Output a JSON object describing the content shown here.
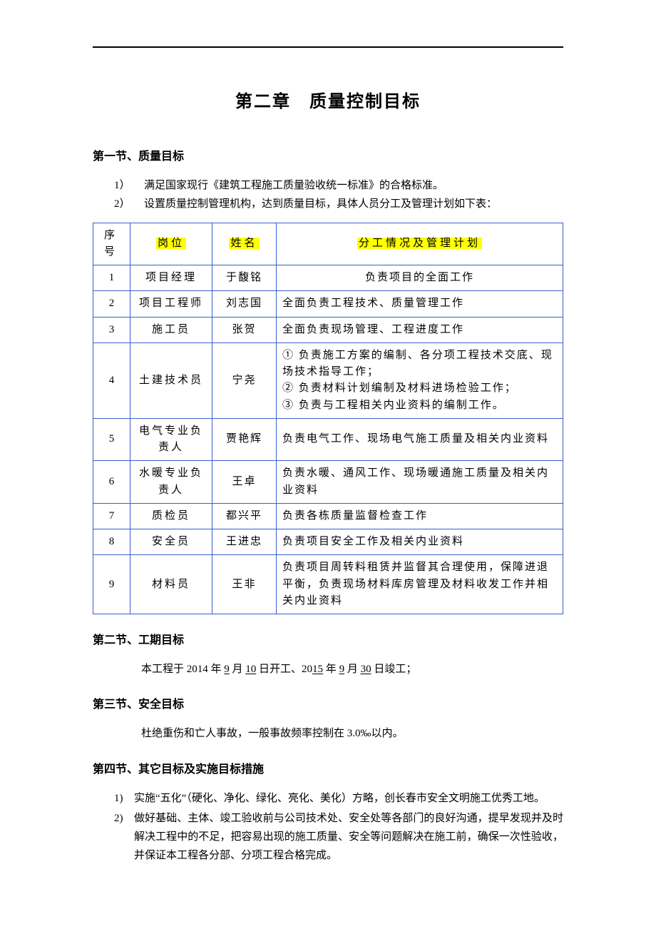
{
  "chapter_title": "第二章　质量控制目标",
  "section1": {
    "heading": "第一节、质量目标",
    "item1_num": "1）",
    "item1_text": "满足国家现行《建筑工程施工质量验收统一标准》的合格标准。",
    "item2_num": "2）",
    "item2_text": "设置质量控制管理机构，达到质量目标，具体人员分工及管理计划如下表："
  },
  "table": {
    "headers": {
      "seq": "序号",
      "pos": "岗位",
      "name": "姓名",
      "desc": "分工情况及管理计划"
    },
    "rows": [
      {
        "seq": "1",
        "pos": "项目经理",
        "name": "于馥铭",
        "desc": "负责项目的全面工作",
        "center": true
      },
      {
        "seq": "2",
        "pos": "项目工程师",
        "name": "刘志国",
        "desc": "全面负责工程技术、质量管理工作"
      },
      {
        "seq": "3",
        "pos": "施工员",
        "name": "张贺",
        "desc": "全面负责现场管理、工程进度工作"
      },
      {
        "seq": "4",
        "pos": "土建技术员",
        "name": "宁尧",
        "desc": "① 负责施工方案的编制、各分项工程技术交底、现场技术指导工作；\n② 负责材料计划编制及材料进场检验工作；\n③ 负责与工程相关内业资料的编制工作。"
      },
      {
        "seq": "5",
        "pos": "电气专业负责人",
        "name": "贾艳辉",
        "desc": "负责电气工作、现场电气施工质量及相关内业资料"
      },
      {
        "seq": "6",
        "pos": "水暖专业负责人",
        "name": "王卓",
        "desc": "负责水暖、通风工作、现场暖通施工质量及相关内业资料"
      },
      {
        "seq": "7",
        "pos": "质检员",
        "name": "都兴平",
        "desc": "负责各栋质量监督检查工作"
      },
      {
        "seq": "8",
        "pos": "安全员",
        "name": "王进忠",
        "desc": "负责项目安全工作及相关内业资料"
      },
      {
        "seq": "9",
        "pos": "材料员",
        "name": "王非",
        "desc": "负责项目周转料租赁并监督其合理使用，保障进退平衡，负责现场材料库房管理及材料收发工作并相关内业资料"
      }
    ]
  },
  "section2": {
    "heading": "第二节、工期目标",
    "para_parts": {
      "p1": "本工程于 2014 年 ",
      "u1": "9",
      "p2": " 月 ",
      "u2": "10",
      "p3": " 日开工、20",
      "u3": "15",
      "p4": " 年 ",
      "u4": "9",
      "p5": " 月 ",
      "u5": "30",
      "p6": " 日竣工；"
    }
  },
  "section3": {
    "heading": "第三节、安全目标",
    "para": "杜绝重伤和亡人事故，一般事故频率控制在 3.0‰以内。"
  },
  "section4": {
    "heading": "第四节、其它目标及实施目标措施",
    "items": [
      {
        "num": "1)",
        "text": "实施“五化”（硬化、净化、绿化、亮化、美化）方略，创长春市安全文明施工优秀工地。"
      },
      {
        "num": "2)",
        "text": "做好基础、主体、竣工验收前与公司技术处、安全处等各部门的良好沟通，提早发现并及时解决工程中的不足，把容易出现的施工质量、安全等问题解决在施工前，确保一次性验收，并保证本工程各分部、分项工程合格完成。"
      }
    ]
  },
  "colors": {
    "border": "#3a5fcd",
    "highlight": "#ffff00",
    "text": "#000000"
  }
}
